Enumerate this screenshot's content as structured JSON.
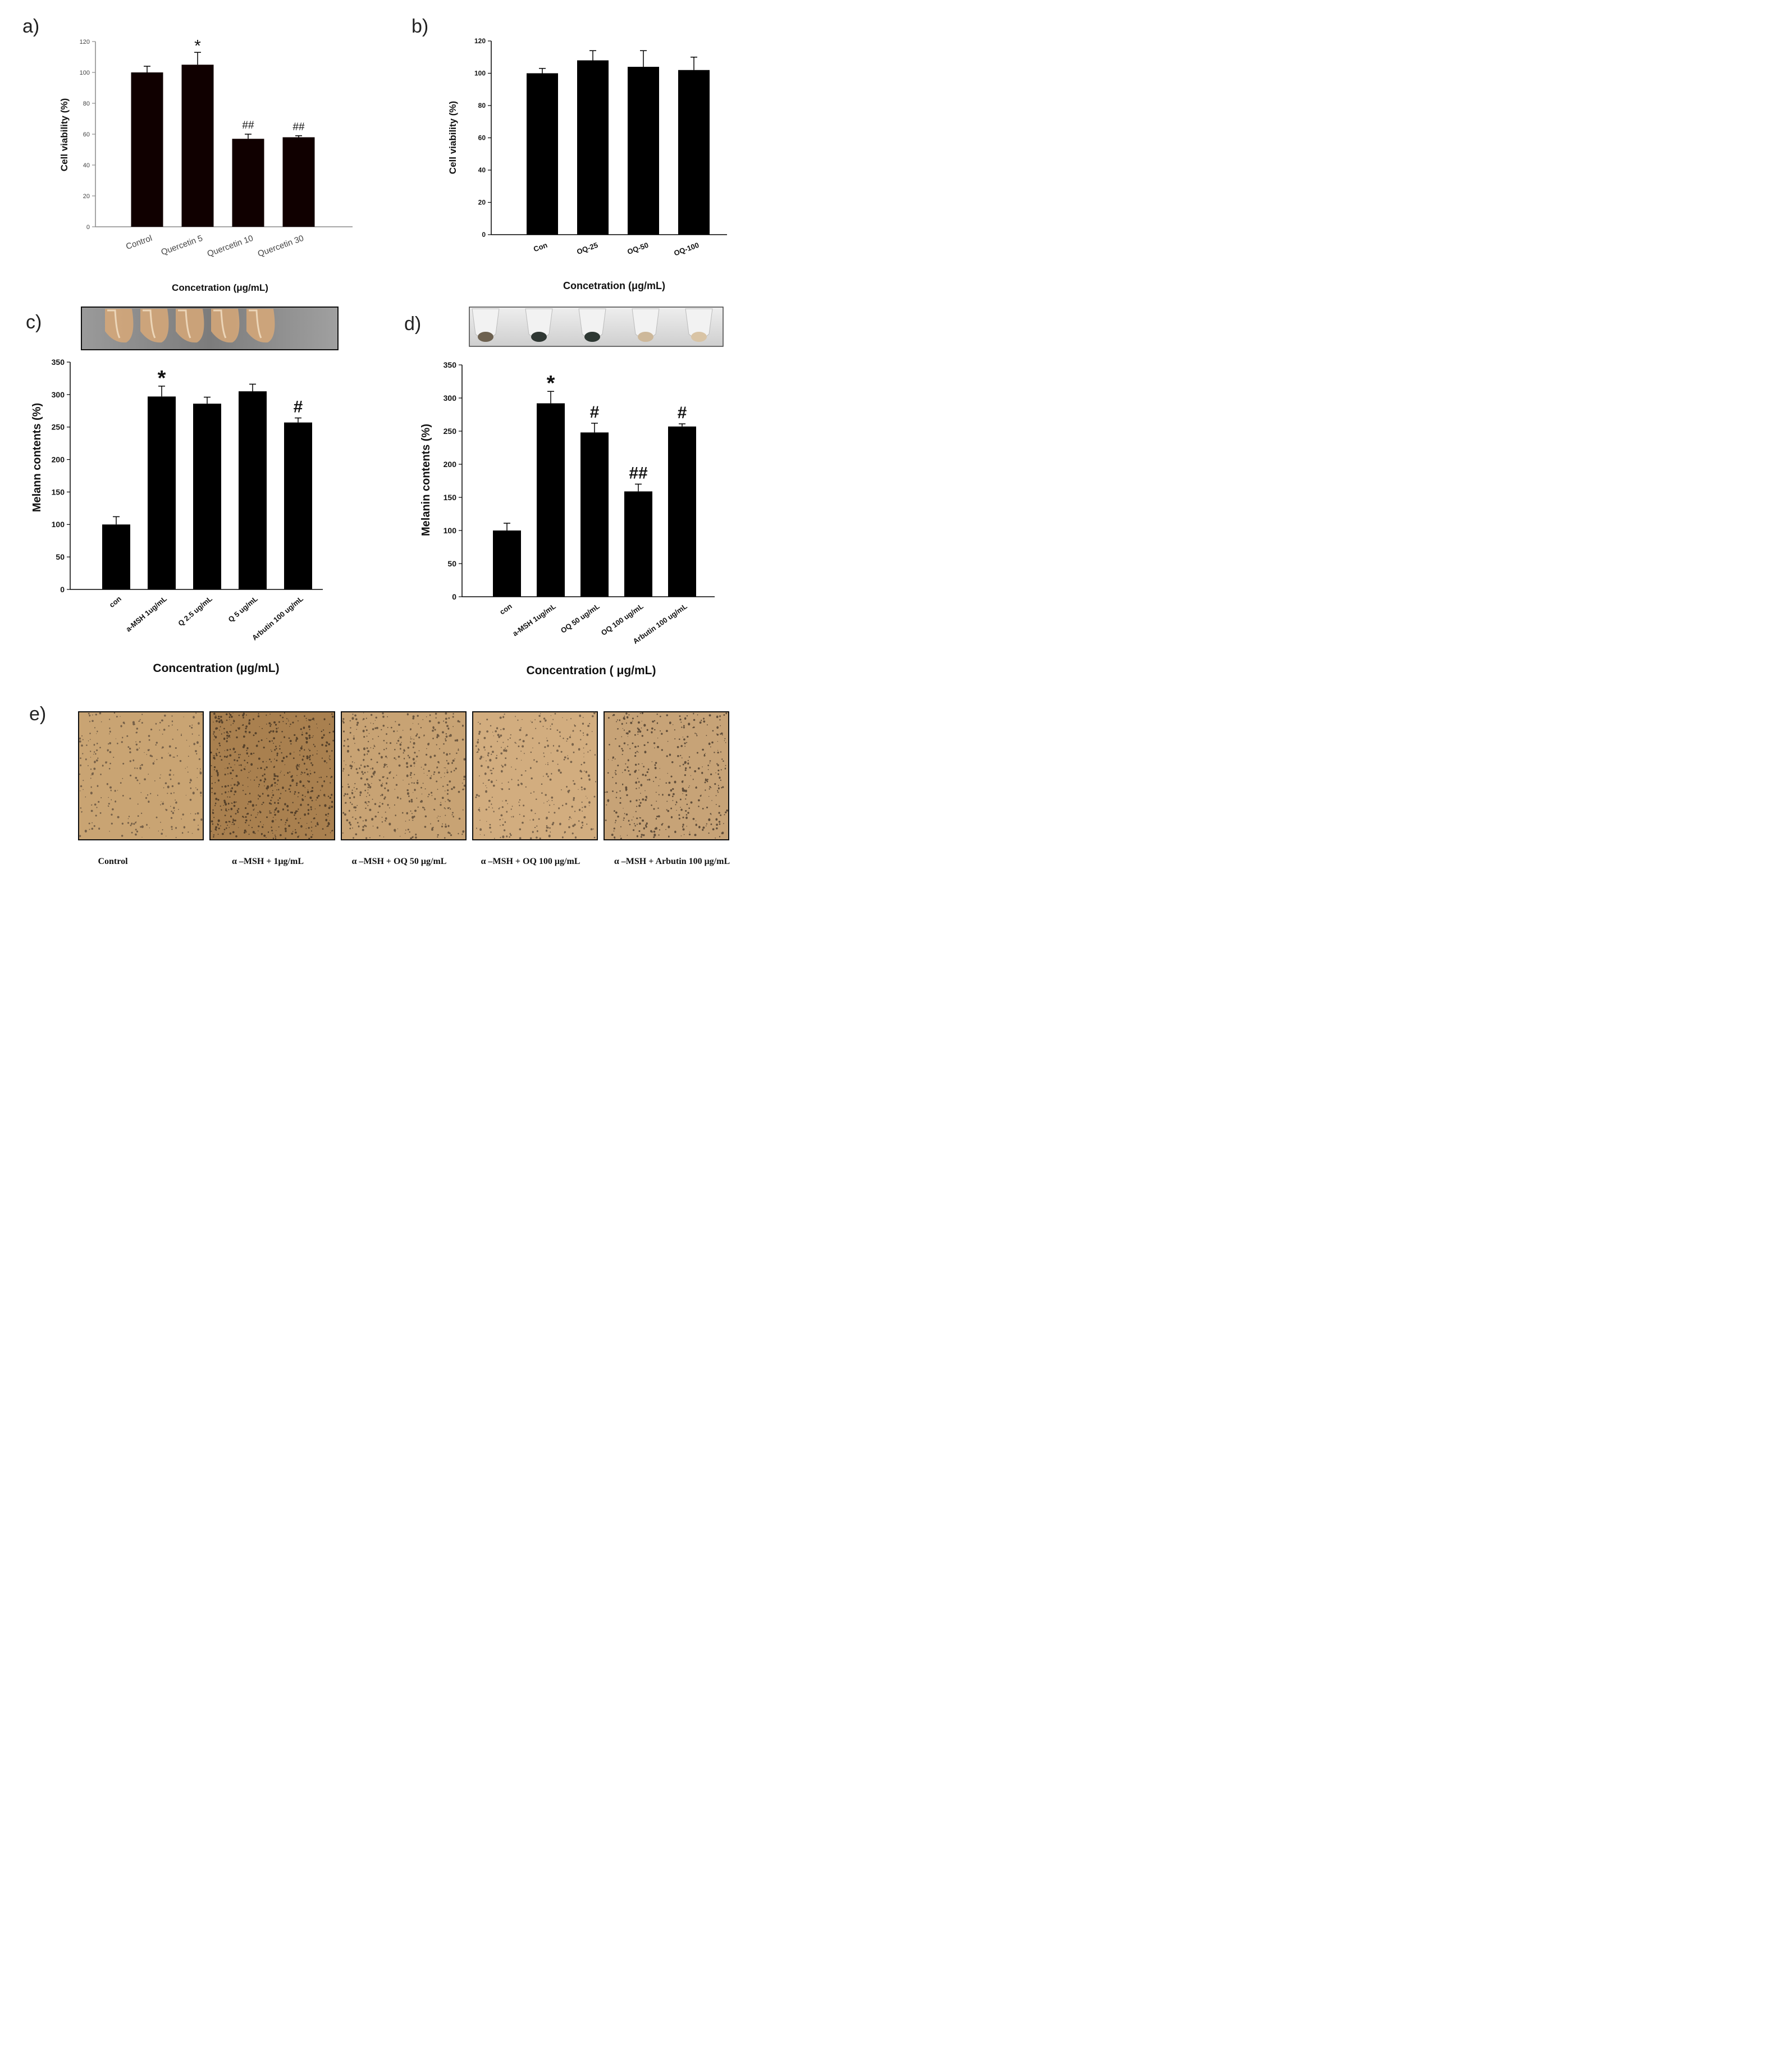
{
  "panel_letters": {
    "a": "a)",
    "b": "b)",
    "c": "c)",
    "d": "d)",
    "e": "e)"
  },
  "chart_data": [
    {
      "panel": "a",
      "type": "bar",
      "categories": [
        "Control",
        "Quercetin 5",
        "Quercetin 10",
        "Quercetin 30"
      ],
      "values": [
        100,
        105,
        57,
        58
      ],
      "errors": [
        4,
        8,
        3,
        1
      ],
      "annotations": [
        "",
        "*",
        "##",
        "##"
      ],
      "xlabel": "Concetration (μg/mL)",
      "ylabel": "Cell viability (%)",
      "ylim": [
        0,
        120
      ],
      "yticks": [
        0,
        20,
        40,
        60,
        80,
        100,
        120
      ],
      "bar_color": "#100000",
      "axis_color": "#8a8a8a"
    },
    {
      "panel": "b",
      "type": "bar",
      "categories": [
        "Con",
        "OQ-25",
        "OQ-50",
        "OQ-100"
      ],
      "values": [
        100,
        108,
        104,
        102
      ],
      "errors": [
        3,
        6,
        10,
        8
      ],
      "annotations": [
        "",
        "",
        "",
        ""
      ],
      "xlabel": "Concetration (μg/mL)",
      "ylabel": "Cell viability (%)",
      "ylim": [
        0,
        120
      ],
      "yticks": [
        0,
        20,
        40,
        60,
        80,
        100,
        120
      ],
      "bar_color": "#000000",
      "axis_color": "#000000"
    },
    {
      "panel": "c",
      "type": "bar",
      "categories": [
        "con",
        "a-MSH 1ug/mL",
        "Q 2.5 ug/mL",
        "Q 5  ug/mL",
        "Arbutin 100  ug/mL"
      ],
      "values": [
        100,
        297,
        286,
        305,
        257
      ],
      "errors": [
        12,
        16,
        10,
        11,
        7
      ],
      "annotations": [
        "",
        "*",
        "",
        "",
        "#"
      ],
      "xlabel": "Concentration (μg/mL)",
      "ylabel": "Melann contents (%)",
      "ylim": [
        0,
        350
      ],
      "yticks": [
        0,
        50,
        100,
        150,
        200,
        250,
        300,
        350
      ],
      "bar_color": "#000000",
      "axis_color": "#000000"
    },
    {
      "panel": "d",
      "type": "bar",
      "categories": [
        "con",
        "a-MSH 1ug/mL",
        "OQ 50 ug/mL",
        "OQ 100 ug/mL",
        "Arbutin 100  ug/mL"
      ],
      "values": [
        100,
        292,
        248,
        159,
        257
      ],
      "errors": [
        11,
        18,
        14,
        11,
        4
      ],
      "annotations": [
        "",
        "*",
        "#",
        "##",
        "#"
      ],
      "xlabel": "Concentration (  μg/mL)",
      "ylabel": "Melanin contents (%)",
      "ylim": [
        0,
        350
      ],
      "yticks": [
        0,
        50,
        100,
        150,
        200,
        250,
        300,
        350
      ],
      "bar_color": "#000000",
      "axis_color": "#000000"
    }
  ],
  "micrographs": {
    "captions": [
      "Control",
      "α –MSH + 1μg/mL",
      "α –MSH + OQ 50 μg/mL",
      "α –MSH + OQ 100 μg/mL",
      "α –MSH + Arbutin 100 μg/mL"
    ],
    "background_colors": [
      "#c9a473",
      "#a9804f",
      "#c8a374",
      "#d2ad7f",
      "#c7a377"
    ],
    "cell_colors": [
      "#5a4a3a",
      "#3b2c1d",
      "#4f3f2f",
      "#5a4938",
      "#3f3226"
    ],
    "density": [
      0.35,
      0.75,
      0.55,
      0.4,
      0.5
    ]
  },
  "tubes": {
    "c_liquid": "#d7a878",
    "c_background": "#8f8f8f",
    "d_pellets": [
      "#6d6150",
      "#2f3733",
      "#2e3833",
      "#cdb89a",
      "#d9c4a5"
    ],
    "d_background": "#dcdcdc"
  }
}
